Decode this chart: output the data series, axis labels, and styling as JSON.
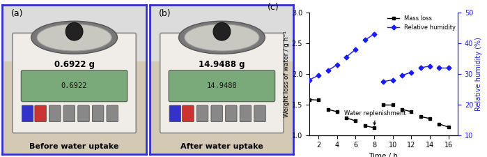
{
  "title_c": "(c)",
  "xlabel": "Time / h",
  "ylabel_left": "Weight loss of water / g h⁻¹",
  "ylabel_right": "Relative humidity (%)",
  "ylim_left": [
    1.0,
    3.0
  ],
  "ylim_right": [
    10,
    50
  ],
  "xlim": [
    0,
    17
  ],
  "xlim_display": [
    1,
    17
  ],
  "xticks": [
    2,
    4,
    6,
    8,
    10,
    12,
    14,
    16
  ],
  "yticks_left": [
    1.0,
    1.5,
    2.0,
    2.5,
    3.0
  ],
  "yticks_right": [
    10,
    20,
    30,
    40,
    50
  ],
  "mass_loss_segments": [
    [
      [
        1,
        1.58
      ],
      [
        2,
        1.57
      ]
    ],
    [
      [
        3,
        1.42
      ],
      [
        4,
        1.38
      ]
    ],
    [
      [
        5,
        1.28
      ],
      [
        6,
        1.23
      ]
    ],
    [
      [
        7,
        1.15
      ],
      [
        8,
        1.12
      ]
    ],
    [
      [
        9,
        1.5
      ],
      [
        10,
        1.5
      ]
    ],
    [
      [
        11,
        1.42
      ],
      [
        12,
        1.38
      ]
    ],
    [
      [
        13,
        1.3
      ],
      [
        14,
        1.27
      ]
    ],
    [
      [
        15,
        1.18
      ],
      [
        16,
        1.13
      ]
    ]
  ],
  "humidity_data": [
    [
      [
        1,
        28
      ],
      [
        2,
        29.5
      ]
    ],
    [
      [
        3,
        31
      ],
      [
        4,
        33
      ]
    ],
    [
      [
        5,
        35.5
      ],
      [
        6,
        38
      ]
    ],
    [
      [
        7,
        41
      ],
      [
        8,
        43
      ]
    ],
    [
      [
        9,
        27.5
      ],
      [
        10,
        28
      ]
    ],
    [
      [
        11,
        29.5
      ],
      [
        12,
        30.5
      ]
    ],
    [
      [
        13,
        32
      ],
      [
        14,
        32.5
      ]
    ],
    [
      [
        15,
        32
      ],
      [
        16,
        32
      ]
    ]
  ],
  "annotation_text": "Water replenishment",
  "mass_loss_color": "#000000",
  "humidity_color": "#1a1aff",
  "background_color": "#ffffff",
  "panel_a_label": "(a)",
  "panel_b_label": "(b)",
  "panel_a_weight": "0.6922 g",
  "panel_b_weight": "14.9488 g",
  "panel_a_caption": "Before water uptake",
  "panel_b_caption": "After water uptake",
  "border_color": "#3030cc",
  "scale_bg": "#d4c9b4",
  "scale_body_color": "#e8e4dc",
  "scale_top_color": "#b0b0b0",
  "scale_display_bg": "#8aad8a",
  "scale_base_color": "#c0c0c0"
}
